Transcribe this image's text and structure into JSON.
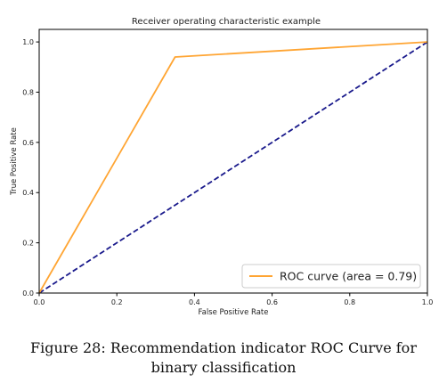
{
  "chart_data": {
    "type": "line",
    "title": "Receiver operating characteristic example",
    "xlabel": "False Positive Rate",
    "ylabel": "True Positive Rate",
    "xlim": [
      0.0,
      1.0
    ],
    "ylim": [
      0.0,
      1.05
    ],
    "x_ticks": [
      0.0,
      0.2,
      0.4,
      0.6,
      0.8,
      1.0
    ],
    "y_ticks": [
      0.0,
      0.2,
      0.4,
      0.6,
      0.8,
      1.0
    ],
    "x_tick_labels": [
      "0.0",
      "0.2",
      "0.4",
      "0.6",
      "0.8",
      "1.0"
    ],
    "y_tick_labels": [
      "0.0",
      "0.2",
      "0.4",
      "0.6",
      "0.8",
      "1.0"
    ],
    "grid": false,
    "legend_position": "lower-right",
    "series": [
      {
        "name": "ROC curve (area = 0.79)",
        "color": "#ffa533",
        "style": "solid",
        "x": [
          0.0,
          0.35,
          1.0
        ],
        "y": [
          0.0,
          0.94,
          1.0
        ]
      },
      {
        "color": "#1a1a8c",
        "style": "dashed",
        "x": [
          0.0,
          1.0
        ],
        "y": [
          0.0,
          1.0
        ]
      }
    ]
  },
  "caption": {
    "line1": "Figure 28: Recommendation indicator ROC Curve for",
    "line2": "binary classification"
  }
}
